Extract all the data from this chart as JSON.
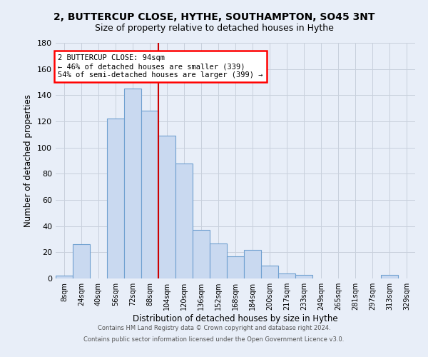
{
  "title": "2, BUTTERCUP CLOSE, HYTHE, SOUTHAMPTON, SO45 3NT",
  "subtitle": "Size of property relative to detached houses in Hythe",
  "xlabel": "Distribution of detached houses by size in Hythe",
  "ylabel": "Number of detached properties",
  "annotation_title": "2 BUTTERCUP CLOSE: 94sqm",
  "annotation_line1": "← 46% of detached houses are smaller (339)",
  "annotation_line2": "54% of semi-detached houses are larger (399) →",
  "bar_categories": [
    "8sqm",
    "24sqm",
    "40sqm",
    "56sqm",
    "72sqm",
    "88sqm",
    "104sqm",
    "120sqm",
    "136sqm",
    "152sqm",
    "168sqm",
    "184sqm",
    "200sqm",
    "217sqm",
    "233sqm",
    "249sqm",
    "265sqm",
    "281sqm",
    "297sqm",
    "313sqm",
    "329sqm"
  ],
  "bar_values": [
    2,
    26,
    0,
    122,
    145,
    128,
    109,
    88,
    37,
    27,
    17,
    22,
    10,
    4,
    3,
    0,
    0,
    0,
    0,
    3,
    0
  ],
  "bin_width": 16,
  "vline_pos": 96,
  "ylim_max": 180,
  "yticks": [
    0,
    20,
    40,
    60,
    80,
    100,
    120,
    140,
    160,
    180
  ],
  "bar_color": "#c9d9f0",
  "bar_edge_color": "#6fa0d0",
  "vline_color": "#cc0000",
  "grid_color": "#c8d0dc",
  "bg_color": "#e8eef8",
  "footer1": "Contains HM Land Registry data © Crown copyright and database right 2024.",
  "footer2": "Contains public sector information licensed under the Open Government Licence v3.0."
}
